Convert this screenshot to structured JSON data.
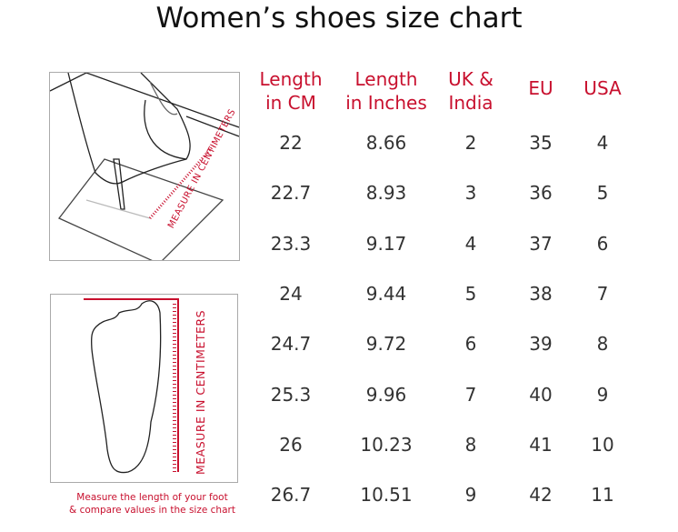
{
  "title": "Women’s shoes size chart",
  "accent_color": "#c8102e",
  "illustration_top": {
    "label": "MEASURE IN CENTIMETERS",
    "icon": "foot-measuring-illustration"
  },
  "illustration_bottom": {
    "label": "MEASURE IN CENTIMETERS",
    "icon": "foot-outline-illustration"
  },
  "note_line1": "Measure the length of your foot",
  "note_line2": "& compare values in the size chart",
  "table": {
    "headers": [
      [
        "Length",
        "in CM"
      ],
      [
        "Length",
        "in Inches"
      ],
      [
        "UK &",
        "India"
      ],
      [
        "EU",
        ""
      ],
      [
        "USA",
        ""
      ]
    ],
    "rows": [
      [
        "22",
        "8.66",
        "2",
        "35",
        "4"
      ],
      [
        "22.7",
        "8.93",
        "3",
        "36",
        "5"
      ],
      [
        "23.3",
        "9.17",
        "4",
        "37",
        "6"
      ],
      [
        "24",
        "9.44",
        "5",
        "38",
        "7"
      ],
      [
        "24.7",
        "9.72",
        "6",
        "39",
        "8"
      ],
      [
        "25.3",
        "9.96",
        "7",
        "40",
        "9"
      ],
      [
        "26",
        "10.23",
        "8",
        "41",
        "10"
      ],
      [
        "26.7",
        "10.51",
        "9",
        "42",
        "11"
      ]
    ]
  }
}
